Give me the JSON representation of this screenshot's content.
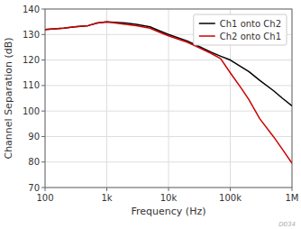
{
  "chart_data": {
    "type": "line",
    "xlabel": "Frequency (Hz)",
    "ylabel": "Channel Separation (dB)",
    "log": "x",
    "grid": true,
    "legend": "upper right",
    "xlim": [
      100,
      1000000
    ],
    "ylim": [
      70,
      140
    ],
    "xticks": [
      100,
      {
        "value": 1000,
        "label": "1k"
      },
      {
        "value": 10000,
        "label": "10k"
      },
      {
        "value": 100000,
        "label": "100k"
      },
      {
        "value": 1000000,
        "label": "1M"
      }
    ],
    "yticks": [
      70,
      80,
      90,
      100,
      110,
      120,
      130,
      140
    ],
    "series": [
      {
        "name": "Ch1 onto Ch2",
        "color": "#000000",
        "x": [
          100,
          200,
          300,
          500,
          700,
          1000,
          2000,
          3000,
          5000,
          7000,
          10000,
          20000,
          30000,
          50000,
          70000,
          100000,
          200000,
          300000,
          500000,
          700000,
          1000000
        ],
        "values": [
          132.0,
          132.5,
          133.0,
          133.5,
          134.5,
          135.0,
          134.5,
          134.0,
          133.0,
          131.5,
          130.0,
          127.5,
          125.5,
          123.0,
          121.5,
          120.0,
          115.5,
          112.0,
          108.0,
          105.0,
          102.0
        ]
      },
      {
        "name": "Ch2 onto Ch1",
        "color": "#cc0000",
        "x": [
          100,
          200,
          300,
          500,
          700,
          1000,
          2000,
          3000,
          5000,
          7000,
          10000,
          20000,
          30000,
          50000,
          70000,
          100000,
          150000,
          200000,
          300000,
          500000,
          700000,
          1000000
        ],
        "values": [
          132.0,
          132.5,
          133.0,
          133.5,
          134.5,
          135.0,
          134.0,
          133.5,
          132.5,
          131.0,
          129.5,
          127.0,
          125.0,
          122.5,
          120.5,
          115.0,
          109.0,
          104.5,
          97.0,
          90.0,
          85.0,
          79.5
        ]
      }
    ],
    "annotations": [
      "D034"
    ]
  }
}
